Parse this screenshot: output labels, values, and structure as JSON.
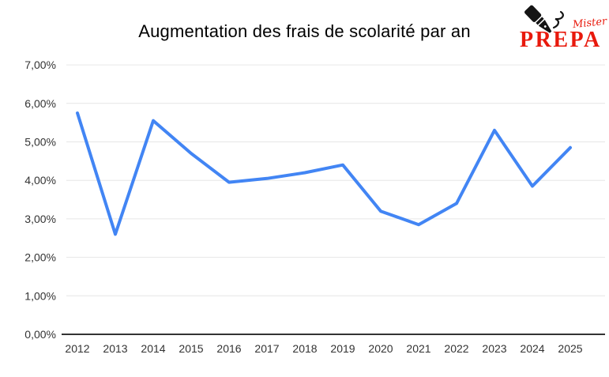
{
  "header": {
    "title": "Augmentation des frais de scolarité par an"
  },
  "logo": {
    "name_script": "Mister",
    "name_main": "PREPA",
    "icon": "fountain-pen-icon",
    "brand_color": "#e8190c"
  },
  "chart_data": {
    "type": "line",
    "title": "Augmentation des frais de scolarité par an",
    "categories": [
      "2012",
      "2013",
      "2014",
      "2015",
      "2016",
      "2017",
      "2018",
      "2019",
      "2020",
      "2021",
      "2022",
      "2023",
      "2024",
      "2025"
    ],
    "values": [
      5.75,
      2.6,
      5.55,
      4.7,
      3.95,
      4.05,
      4.2,
      4.4,
      3.2,
      2.85,
      3.4,
      5.3,
      3.85,
      4.85
    ],
    "unit": "%",
    "y_tick_labels": [
      "0,00%",
      "1,00%",
      "2,00%",
      "3,00%",
      "4,00%",
      "5,00%",
      "6,00%",
      "7,00%"
    ],
    "ylim": [
      0,
      7
    ],
    "grid": true,
    "legend_position": "none",
    "line_color": "#4285f4",
    "gridline_color": "#e6e6e6",
    "axis_line_color": "#333333",
    "label_color": "#333333"
  }
}
